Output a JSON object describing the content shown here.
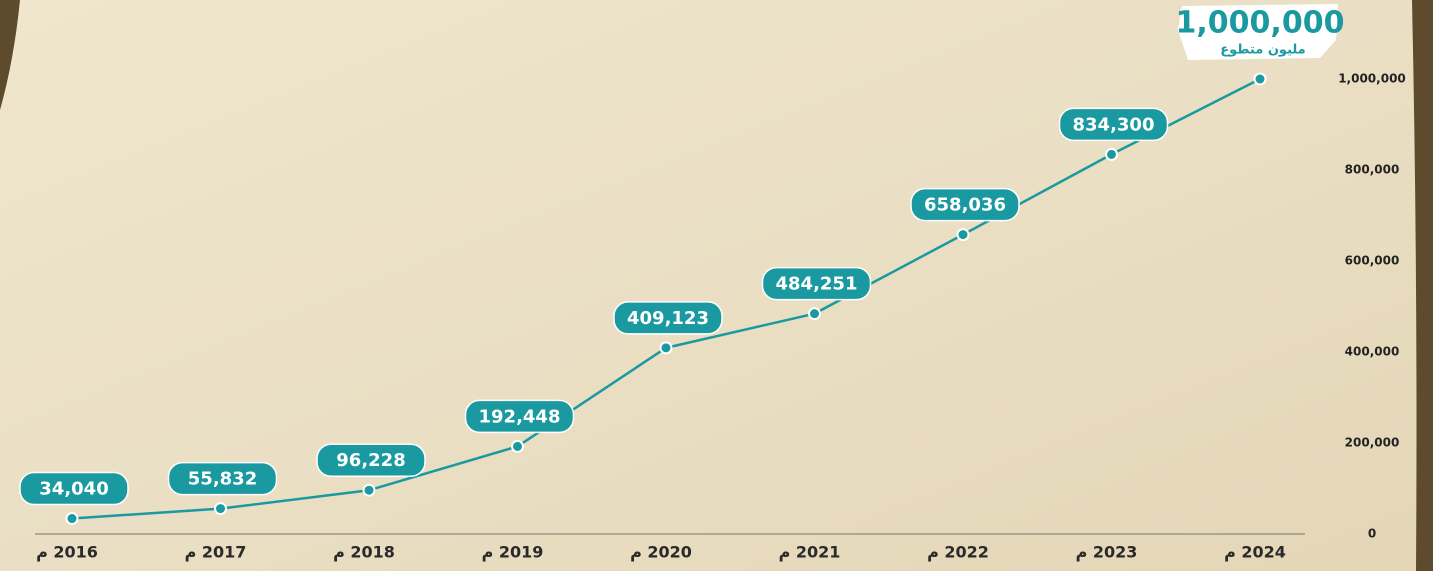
{
  "chart_data": {
    "type": "line",
    "categories": [
      "2016 م",
      "2017 م",
      "2018 م",
      "2019 م",
      "2020 م",
      "2021 م",
      "2022 م",
      "2023 م",
      "2024 م"
    ],
    "values": [
      34040,
      55832,
      96228,
      192448,
      409123,
      484251,
      658036,
      834300,
      1000000
    ],
    "value_labels": [
      "34,040",
      "55,832",
      "96,228",
      "192,448",
      "409,123",
      "484,251",
      "658,036",
      "834,300",
      "1,000,000"
    ],
    "annotation": "مليون متطوع",
    "color": "#1a9aa0",
    "ylim": [
      0,
      1000000
    ],
    "yticks": [
      0,
      {
        "value": 200000,
        "label": "200,000"
      },
      {
        "value": 400000,
        "label": "400,000"
      },
      {
        "value": 600000,
        "label": "600,000"
      },
      {
        "value": 800000,
        "label": "800,000"
      },
      {
        "value": 1000000,
        "label": "1,000,000"
      }
    ],
    "grid": false
  }
}
